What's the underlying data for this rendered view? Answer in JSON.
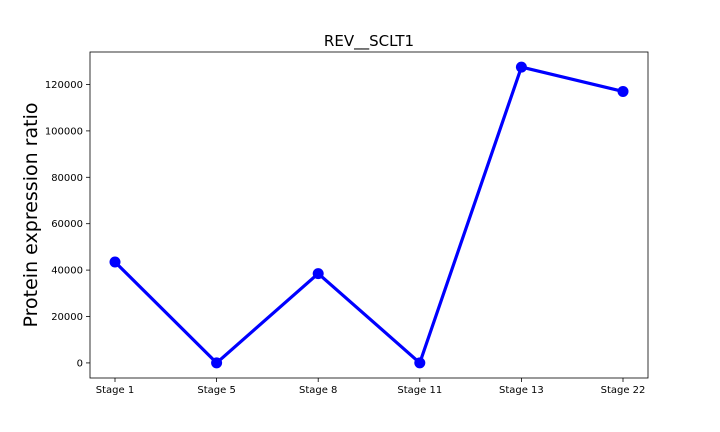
{
  "chart_data": {
    "type": "line",
    "title": "REV__SCLT1",
    "xlabel": "",
    "ylabel": "Protein expression ratio",
    "categories": [
      "Stage 1",
      "Stage 5",
      "Stage 8",
      "Stage 11",
      "Stage 13",
      "Stage 22"
    ],
    "series": [
      {
        "values": [
          43500,
          0,
          38500,
          0,
          127500,
          117000
        ],
        "color": "#0000ff"
      }
    ],
    "ylim": [
      -6500,
      134000
    ],
    "yticks": [
      0,
      20000,
      40000,
      60000,
      80000,
      100000,
      120000
    ],
    "ytick_labels": [
      "0",
      "20000",
      "40000",
      "60000",
      "80000",
      "100000",
      "120000"
    ],
    "grid": false,
    "legend": false
  }
}
